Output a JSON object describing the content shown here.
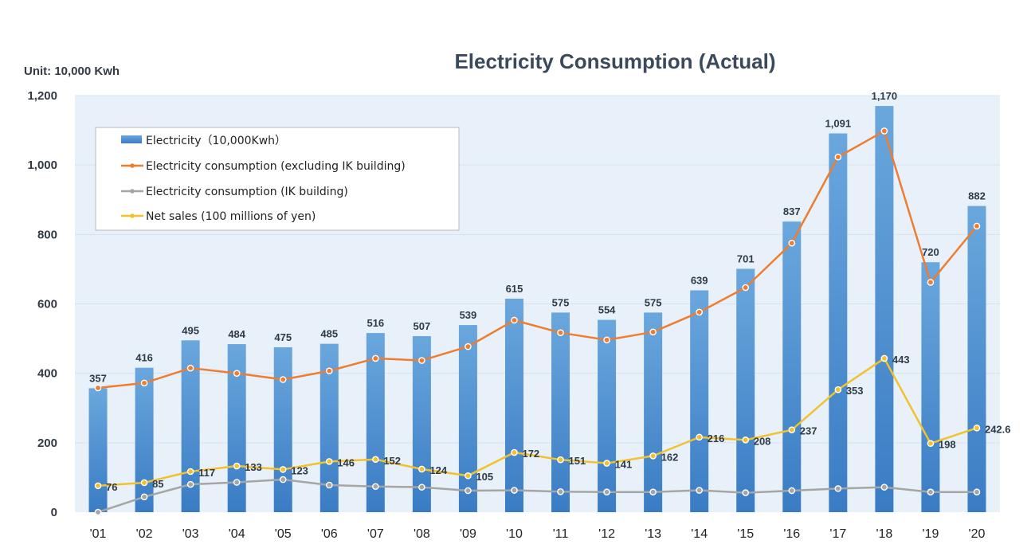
{
  "chart_data": {
    "type": "bar",
    "title": "Electricity Consumption (Actual)",
    "unit_label": "Unit: 10,000 Kwh",
    "categories": [
      "'01",
      "'02",
      "'03",
      "'04",
      "'05",
      "'06",
      "'07",
      "'08",
      "'09",
      "'10",
      "'11",
      "'12",
      "'13",
      "'14",
      "'15",
      "'16",
      "'17",
      "'18",
      "'19",
      "'20"
    ],
    "ylim": [
      0,
      1200
    ],
    "yticks": [
      0,
      200,
      400,
      600,
      800,
      1000,
      1200
    ],
    "ytick_labels": [
      "0",
      "200",
      "400",
      "600",
      "800",
      "1,000",
      "1,200"
    ],
    "grid": true,
    "legend_position": "upper-left",
    "series": [
      {
        "name": "Electricity（10,000Kwh）",
        "type": "bar",
        "color": "#5b9bd5",
        "values": [
          357,
          416,
          495,
          484,
          475,
          485,
          516,
          507,
          539,
          615,
          575,
          554,
          575,
          639,
          701,
          837,
          1091,
          1170,
          720,
          882
        ],
        "labels": [
          "357",
          "416",
          "495",
          "484",
          "475",
          "485",
          "516",
          "507",
          "539",
          "615",
          "575",
          "554",
          "575",
          "639",
          "701",
          "837",
          "1,091",
          "1,170",
          "720",
          "882"
        ]
      },
      {
        "name": "Electricity consumption (excluding IK building)",
        "type": "line",
        "color": "#ed7d31",
        "values": [
          358,
          372,
          415,
          400,
          382,
          407,
          443,
          437,
          477,
          553,
          517,
          496,
          519,
          576,
          647,
          775,
          1023,
          1098,
          662,
          824
        ]
      },
      {
        "name": "Electricity consumption (IK building)",
        "type": "line",
        "color": "#a5a5a5",
        "values": [
          0,
          44,
          80,
          86,
          94,
          78,
          74,
          72,
          62,
          63,
          59,
          58,
          58,
          63,
          56,
          62,
          68,
          72,
          58,
          58
        ]
      },
      {
        "name": "Net sales (100 millions of yen)",
        "type": "line",
        "color": "#f2c12e",
        "values": [
          76,
          85,
          117,
          133,
          123,
          146,
          152,
          124,
          105,
          172,
          151,
          141,
          162,
          216,
          208,
          237,
          353,
          443,
          198,
          242.6
        ],
        "labels": [
          "76",
          "85",
          "117",
          "133",
          "123",
          "146",
          "152",
          "124",
          "105",
          "172",
          "151",
          "141",
          "162",
          "216",
          "208",
          "237",
          "353",
          "443",
          "198",
          "242.6"
        ]
      }
    ]
  }
}
